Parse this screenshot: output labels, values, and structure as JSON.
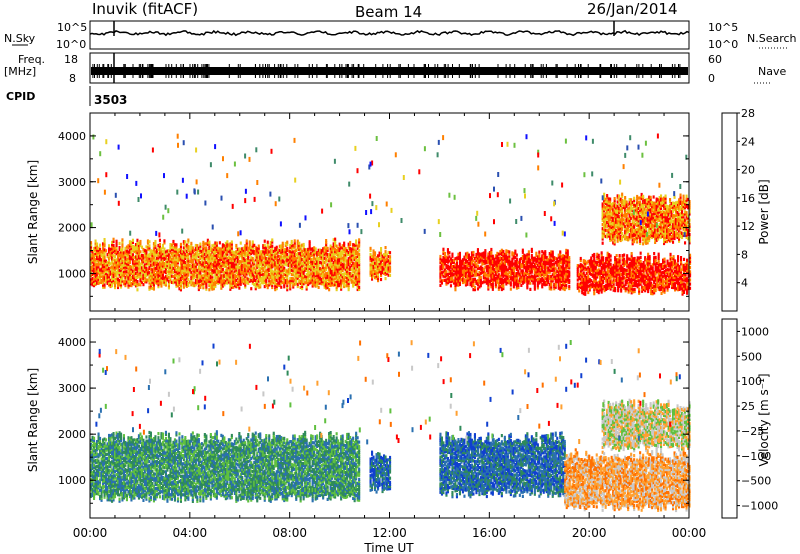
{
  "header": {
    "station": "Inuvik (fitACF)",
    "beam": "Beam 14",
    "date": "26/Jan/2014"
  },
  "panels": {
    "nsky": {
      "left_label": "N.Sky",
      "right_label": "N.Search",
      "left_ticks": [
        "10^5",
        "10^0"
      ],
      "right_ticks": [
        "10^5",
        "10^0"
      ]
    },
    "freq": {
      "left_label_1": "Freq.",
      "left_label_2": "[MHz]",
      "right_label": "Nave",
      "left_ticks": [
        "18",
        "8"
      ],
      "right_ticks": [
        "60",
        "0"
      ]
    },
    "cpid": {
      "label": "CPID",
      "value": "3503"
    }
  },
  "chart_data": [
    {
      "type": "heatmap",
      "title": "",
      "ylabel": "Slant Range [km]",
      "xlabel": "",
      "x_range_hours": [
        0,
        24
      ],
      "ylim": [
        180,
        4500
      ],
      "y_ticks": [
        1000,
        2000,
        3000,
        4000
      ],
      "colorbar": {
        "label": "Power [dB]",
        "ticks": [
          "4",
          "8",
          "12",
          "16",
          "20",
          "24",
          "28"
        ],
        "colors": [
          "#1010ff",
          "#2a4fb0",
          "#3f8b6a",
          "#6cc040",
          "#e8d020",
          "#ff8000",
          "#ff0000"
        ]
      },
      "echo_bands": [
        {
          "t_start": 0.0,
          "t_end": 10.8,
          "range_low_km": 700,
          "range_high_km": 1600,
          "dominant_level_db": 24
        },
        {
          "t_start": 11.2,
          "t_end": 12.0,
          "range_low_km": 900,
          "range_high_km": 1500,
          "dominant_level_db": 24
        },
        {
          "t_start": 14.0,
          "t_end": 19.2,
          "range_low_km": 700,
          "range_high_km": 1400,
          "dominant_level_db": 26
        },
        {
          "t_start": 19.5,
          "t_end": 24.0,
          "range_low_km": 600,
          "range_high_km": 1300,
          "dominant_level_db": 28
        },
        {
          "t_start": 20.5,
          "t_end": 24.0,
          "range_low_km": 1700,
          "range_high_km": 2600,
          "dominant_level_db": 24
        }
      ]
    },
    {
      "type": "heatmap",
      "title": "",
      "ylabel": "Slant Range [km]",
      "xlabel": "Time UT",
      "x_range_hours": [
        0,
        24
      ],
      "ylim": [
        180,
        4500
      ],
      "y_ticks": [
        1000,
        2000,
        3000,
        4000
      ],
      "x_tick_labels": [
        "00:00",
        "04:00",
        "08:00",
        "12:00",
        "16:00",
        "20:00",
        "00:00"
      ],
      "colorbar": {
        "label": "Velocity [m s⁻¹]",
        "ticks": [
          "1000",
          "500",
          "100",
          "25",
          "−25",
          "−100",
          "−500",
          "−1000"
        ],
        "colors": [
          "#1040d0",
          "#2a70b0",
          "#2f8a5a",
          "#60c040",
          "#c8c8c8",
          "#ffa030",
          "#ff7000",
          "#ff0000"
        ]
      },
      "echo_bands": [
        {
          "t_start": 0.0,
          "t_end": 10.8,
          "range_low_km": 600,
          "range_high_km": 1900,
          "dominant_velocity": 100
        },
        {
          "t_start": 11.2,
          "t_end": 12.0,
          "range_low_km": 800,
          "range_high_km": 1500,
          "dominant_velocity": 500
        },
        {
          "t_start": 14.0,
          "t_end": 19.0,
          "range_low_km": 700,
          "range_high_km": 1900,
          "dominant_velocity": 500
        },
        {
          "t_start": 19.0,
          "t_end": 24.0,
          "range_low_km": 400,
          "range_high_km": 1500,
          "dominant_velocity": -100
        },
        {
          "t_start": 20.5,
          "t_end": 24.0,
          "range_low_km": 1700,
          "range_high_km": 2600,
          "dominant_velocity": -25
        }
      ]
    }
  ]
}
